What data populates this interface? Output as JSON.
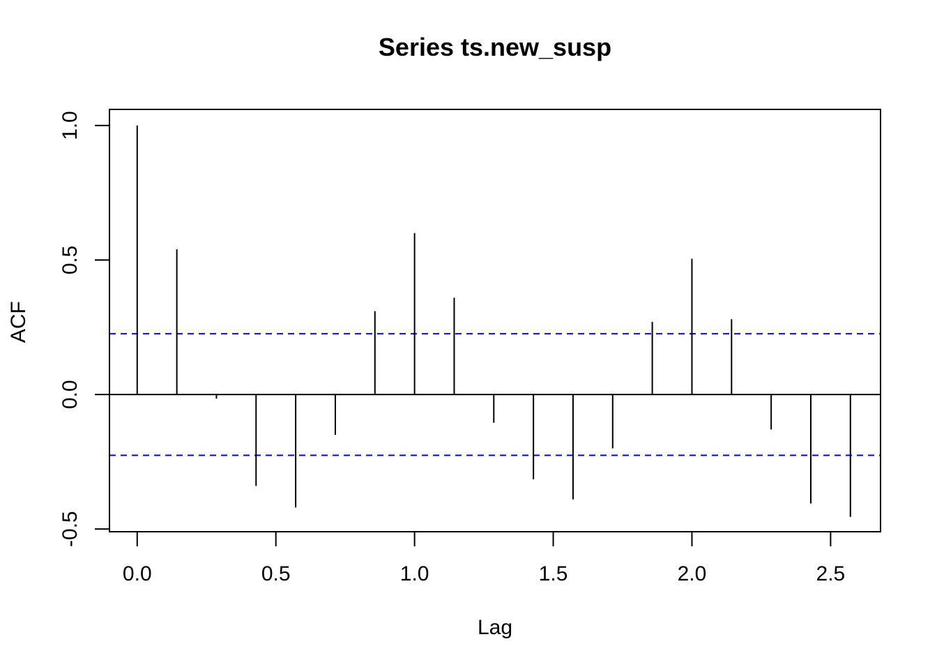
{
  "chart_data": {
    "type": "bar",
    "title": "Series  ts.new_susp",
    "xlabel": "Lag",
    "ylabel": "ACF",
    "xlim": [
      -0.1,
      2.68
    ],
    "ylim": [
      -0.51,
      1.06
    ],
    "x_ticks": [
      "0.0",
      "0.5",
      "1.0",
      "1.5",
      "2.0",
      "2.5"
    ],
    "y_ticks": [
      "-0.5",
      "0.0",
      "0.5",
      "1.0"
    ],
    "lags": [
      0.0,
      0.1429,
      0.2857,
      0.4286,
      0.5714,
      0.7143,
      0.8571,
      1.0,
      1.1429,
      1.2857,
      1.4286,
      1.5714,
      1.7143,
      1.8571,
      2.0,
      2.1429,
      2.2857,
      2.4286,
      2.5714
    ],
    "values": [
      1.0,
      0.54,
      -0.015,
      -0.34,
      -0.42,
      -0.15,
      0.31,
      0.6,
      0.36,
      -0.105,
      -0.315,
      -0.39,
      -0.2,
      0.27,
      0.505,
      0.28,
      -0.13,
      -0.405,
      -0.455
    ],
    "confidence_bound": 0.226,
    "colors": {
      "bars": "#000000",
      "confidence": "#0000ff",
      "zero_line": "#000000"
    }
  }
}
